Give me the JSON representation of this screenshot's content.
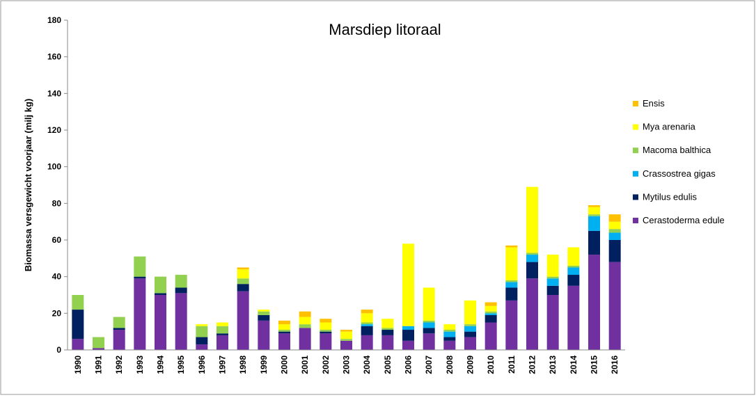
{
  "chart_data": {
    "type": "bar",
    "stacked": true,
    "title": "Marsdiep litoraal",
    "y_label": "Biomassa versgewicht voorjaar (milj kg)",
    "categories": [
      "1990",
      "1991",
      "1992",
      "1993",
      "1994",
      "1995",
      "1996",
      "1997",
      "1998",
      "1999",
      "2000",
      "2001",
      "2002",
      "2003",
      "2004",
      "2005",
      "2006",
      "2007",
      "2008",
      "2009",
      "2010",
      "2011",
      "2012",
      "2013",
      "2014",
      "2015",
      "2016"
    ],
    "ylim": [
      0,
      180
    ],
    "yticks": [
      0,
      20,
      40,
      60,
      80,
      100,
      120,
      140,
      160,
      180
    ],
    "grid": false,
    "legend": "right",
    "series": [
      {
        "name": "Cerastoderma edule",
        "color": "#7030a0",
        "values": [
          6,
          1,
          11,
          39,
          30,
          31,
          3,
          8,
          32,
          16,
          9,
          12,
          9,
          5,
          8,
          8,
          5,
          9,
          5,
          7,
          15,
          27,
          39,
          30,
          35,
          52,
          48
        ]
      },
      {
        "name": "Mytilus edulis",
        "color": "#002060",
        "values": [
          16,
          0,
          1,
          1,
          1,
          3,
          4,
          1,
          4,
          3,
          1,
          0,
          1,
          0,
          5,
          3,
          6,
          3,
          2,
          3,
          4,
          7,
          9,
          5,
          6,
          13,
          12
        ]
      },
      {
        "name": "Crassostrea gigas",
        "color": "#00b0f0",
        "values": [
          0,
          0,
          0,
          0,
          0,
          0,
          0,
          0,
          0,
          0,
          0,
          0,
          0,
          0,
          1,
          0,
          2,
          3,
          3,
          3,
          1,
          3,
          4,
          4,
          4,
          8,
          4
        ]
      },
      {
        "name": "Macoma balthica",
        "color": "#92d050",
        "values": [
          8,
          6,
          6,
          11,
          9,
          7,
          6,
          4,
          3,
          2,
          1,
          2,
          1,
          1,
          1,
          1,
          0,
          1,
          1,
          1,
          1,
          1,
          1,
          1,
          1,
          1,
          2
        ]
      },
      {
        "name": "Mya arenaria",
        "color": "#ffff00",
        "values": [
          0,
          0,
          0,
          0,
          0,
          0,
          1,
          2,
          5,
          1,
          3,
          4,
          4,
          4,
          5,
          5,
          45,
          18,
          3,
          13,
          3,
          18,
          36,
          12,
          10,
          4,
          4
        ]
      },
      {
        "name": "Ensis",
        "color": "#ffc000",
        "values": [
          0,
          0,
          0,
          0,
          0,
          0,
          0,
          0,
          1,
          0,
          2,
          3,
          2,
          1,
          2,
          0,
          0,
          0,
          0,
          0,
          2,
          1,
          0,
          0,
          0,
          1,
          4
        ]
      }
    ]
  }
}
